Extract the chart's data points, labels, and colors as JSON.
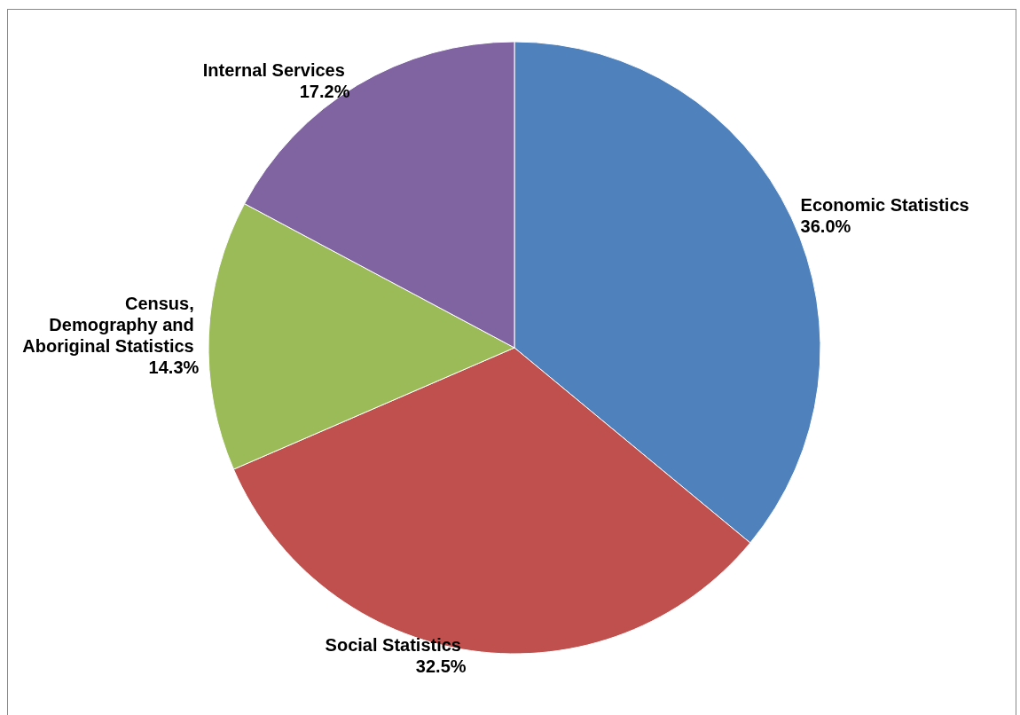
{
  "chart_data": {
    "type": "pie",
    "categories": [
      "Economic Statistics",
      "Social Statistics",
      "Census, Demography and Aboriginal Statistics",
      "Internal Services"
    ],
    "values": [
      36.0,
      32.5,
      14.3,
      17.2
    ],
    "value_labels": [
      "36.0%",
      "32.5%",
      "14.3%",
      "17.2%"
    ],
    "colors": [
      "#4f81bd",
      "#c0504d",
      "#9bbb59",
      "#8064a2"
    ],
    "legend": false
  }
}
